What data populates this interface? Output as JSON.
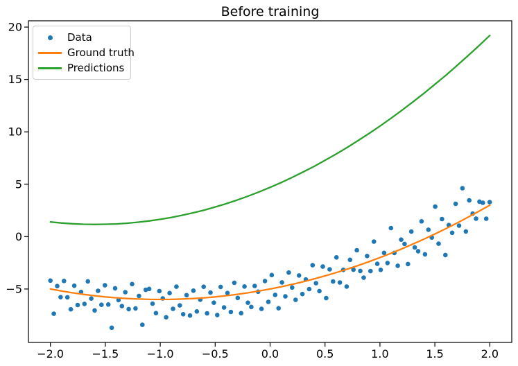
{
  "figure": {
    "background": "#ffffff",
    "spine_color": "#000000",
    "text_color": "#000000"
  },
  "chart_data": {
    "type": "scatter",
    "title": "Before training",
    "xlabel": "",
    "ylabel": "",
    "grid": false,
    "legend_position": "upper left",
    "xlim": [
      -2.2,
      2.2
    ],
    "ylim": [
      -10.1,
      20.6
    ],
    "x_ticks": [
      -2.0,
      -1.5,
      -1.0,
      -0.5,
      0.0,
      0.5,
      1.0,
      1.5,
      2.0
    ],
    "x_tick_labels": [
      "−2.0",
      "−1.5",
      "−1.0",
      "−0.5",
      "0.0",
      "0.5",
      "1.0",
      "1.5",
      "2.0"
    ],
    "y_ticks": [
      -5,
      0,
      5,
      10,
      15,
      20
    ],
    "y_tick_labels": [
      "−5",
      "0",
      "5",
      "10",
      "15",
      "20"
    ],
    "series": [
      {
        "id": "data",
        "name": "Data",
        "type": "scatter",
        "color": "#1f77b4",
        "marker": "dot",
        "x": [
          -2.0,
          -1.969,
          -1.938,
          -1.907,
          -1.876,
          -1.845,
          -1.814,
          -1.783,
          -1.752,
          -1.721,
          -1.69,
          -1.659,
          -1.628,
          -1.597,
          -1.566,
          -1.535,
          -1.504,
          -1.473,
          -1.442,
          -1.411,
          -1.38,
          -1.349,
          -1.318,
          -1.287,
          -1.256,
          -1.225,
          -1.194,
          -1.163,
          -1.132,
          -1.101,
          -1.07,
          -1.039,
          -1.008,
          -0.977,
          -0.946,
          -0.915,
          -0.884,
          -0.853,
          -0.822,
          -0.791,
          -0.76,
          -0.729,
          -0.698,
          -0.667,
          -0.636,
          -0.605,
          -0.574,
          -0.543,
          -0.512,
          -0.481,
          -0.45,
          -0.419,
          -0.388,
          -0.357,
          -0.326,
          -0.295,
          -0.264,
          -0.233,
          -0.202,
          -0.171,
          -0.14,
          -0.109,
          -0.078,
          -0.047,
          -0.016,
          0.015,
          0.046,
          0.077,
          0.108,
          0.139,
          0.17,
          0.201,
          0.232,
          0.263,
          0.294,
          0.325,
          0.356,
          0.387,
          0.418,
          0.449,
          0.48,
          0.511,
          0.542,
          0.573,
          0.604,
          0.635,
          0.666,
          0.697,
          0.728,
          0.759,
          0.79,
          0.821,
          0.852,
          0.883,
          0.914,
          0.945,
          0.976,
          1.007,
          1.038,
          1.069,
          1.1,
          1.131,
          1.162,
          1.193,
          1.224,
          1.255,
          1.286,
          1.317,
          1.348,
          1.379,
          1.41,
          1.441,
          1.472,
          1.503,
          1.534,
          1.565,
          1.596,
          1.627,
          1.658,
          1.689,
          1.72,
          1.751,
          1.782,
          1.813,
          1.844,
          1.875,
          1.906,
          1.937,
          1.968,
          1.999
        ],
        "y": [
          -4.2,
          -7.36,
          -4.72,
          -5.78,
          -4.23,
          -5.79,
          -6.94,
          -4.69,
          -6.53,
          -5.28,
          -6.42,
          -4.27,
          -5.91,
          -7.04,
          -5.18,
          -6.51,
          -4.65,
          -6.48,
          -8.7,
          -4.93,
          -6.06,
          -6.63,
          -5.3,
          -6.92,
          -4.53,
          -6.85,
          -5.66,
          -8.42,
          -5.08,
          -4.99,
          -6.4,
          -7.3,
          -5.2,
          -5.9,
          -7.7,
          -5.39,
          -6.89,
          -4.78,
          -6.57,
          -7.41,
          -5.59,
          -7.53,
          -5.16,
          -7.14,
          -6.02,
          -4.79,
          -7.32,
          -5.34,
          -6.31,
          -7.48,
          -4.8,
          -6.76,
          -5.38,
          -7.19,
          -4.4,
          -5.85,
          -7.31,
          -4.76,
          -6.31,
          -6.71,
          -4.71,
          -5.26,
          -6.9,
          -4.24,
          -6.23,
          -3.67,
          -5.56,
          -6.84,
          -4.37,
          -5.7,
          -3.43,
          -4.86,
          -6.03,
          -3.71,
          -5.48,
          -4.09,
          -5.01,
          -2.73,
          -4.44,
          -5.2,
          -2.86,
          -5.87,
          -3.12,
          -4.28,
          -1.98,
          -4.38,
          -3.17,
          -4.77,
          -2.21,
          -3.16,
          -1.3,
          -3.28,
          -3.92,
          -1.85,
          -3.29,
          -0.47,
          -2.6,
          -3.17,
          -1.55,
          -2.52,
          0.81,
          -1.56,
          -2.78,
          -0.29,
          -0.7,
          -2.62,
          0.48,
          -1.03,
          -1.39,
          1.46,
          -1.69,
          0.66,
          -0.09,
          2.87,
          -0.68,
          1.68,
          -1.76,
          1.1,
          0.37,
          3.13,
          1.05,
          4.62,
          0.49,
          3.46,
          2.19,
          1.72,
          3.34,
          3.23,
          1.71,
          3.29
        ]
      },
      {
        "id": "ground-truth",
        "name": "Ground truth",
        "type": "line",
        "color": "#ff7f0e",
        "x": [
          -2.0,
          -1.9,
          -1.8,
          -1.7,
          -1.6,
          -1.5,
          -1.4,
          -1.3,
          -1.2,
          -1.1,
          -1.0,
          -0.9,
          -0.8,
          -0.7,
          -0.6,
          -0.5,
          -0.4,
          -0.3,
          -0.2,
          -0.1,
          0.0,
          0.1,
          0.2,
          0.3,
          0.4,
          0.5,
          0.6,
          0.7,
          0.8,
          0.9,
          1.0,
          1.1,
          1.2,
          1.3,
          1.4,
          1.5,
          1.6,
          1.7,
          1.8,
          1.9,
          2.0
        ],
        "y": [
          -5.0,
          -5.19,
          -5.36,
          -5.51,
          -5.64,
          -5.75,
          -5.84,
          -5.91,
          -5.96,
          -5.99,
          -6.0,
          -5.99,
          -5.96,
          -5.91,
          -5.84,
          -5.75,
          -5.64,
          -5.51,
          -5.36,
          -5.19,
          -5.0,
          -4.79,
          -4.56,
          -4.31,
          -4.04,
          -3.75,
          -3.44,
          -3.11,
          -2.76,
          -2.39,
          -2.0,
          -1.59,
          -1.16,
          -0.71,
          -0.24,
          0.25,
          0.76,
          1.29,
          1.84,
          2.41,
          3.0
        ]
      },
      {
        "id": "predictions",
        "name": "Predictions",
        "type": "line",
        "color": "#2ca02c",
        "x": [
          -2.0,
          -1.9,
          -1.8,
          -1.7,
          -1.6,
          -1.5,
          -1.4,
          -1.3,
          -1.2,
          -1.1,
          -1.0,
          -0.9,
          -0.8,
          -0.7,
          -0.6,
          -0.5,
          -0.4,
          -0.3,
          -0.2,
          -0.1,
          0.0,
          0.1,
          0.2,
          0.3,
          0.4,
          0.5,
          0.6,
          0.7,
          0.8,
          0.9,
          1.0,
          1.1,
          1.2,
          1.3,
          1.4,
          1.5,
          1.6,
          1.7,
          1.8,
          1.9,
          2.0
        ],
        "y": [
          1.4,
          1.3,
          1.23,
          1.18,
          1.16,
          1.18,
          1.21,
          1.28,
          1.38,
          1.5,
          1.65,
          1.83,
          2.04,
          2.27,
          2.53,
          2.83,
          3.14,
          3.49,
          3.87,
          4.27,
          4.7,
          5.16,
          5.65,
          6.16,
          6.7,
          7.28,
          7.87,
          8.5,
          9.16,
          9.84,
          10.55,
          11.29,
          12.06,
          12.85,
          13.67,
          14.53,
          15.4,
          16.31,
          17.25,
          18.21,
          19.2
        ]
      }
    ]
  }
}
